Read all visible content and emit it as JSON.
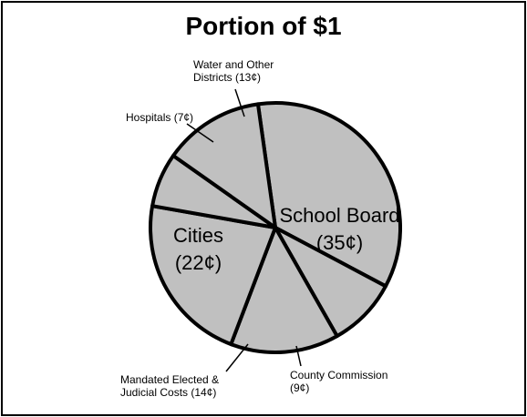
{
  "chart_data": {
    "type": "pie",
    "title": "Portion of $1",
    "categories": [
      "School Board",
      "County Commission",
      "Mandated Elected & Judicial Costs",
      "Cities",
      "Hospitals",
      "Water and Other Districts"
    ],
    "values": [
      35,
      9,
      14,
      22,
      7,
      13
    ],
    "value_labels": [
      "(35¢)",
      "(9¢)",
      "(14¢)",
      "(22¢)",
      "(7¢)",
      "(13¢)"
    ],
    "color": "#c0c0c0"
  }
}
